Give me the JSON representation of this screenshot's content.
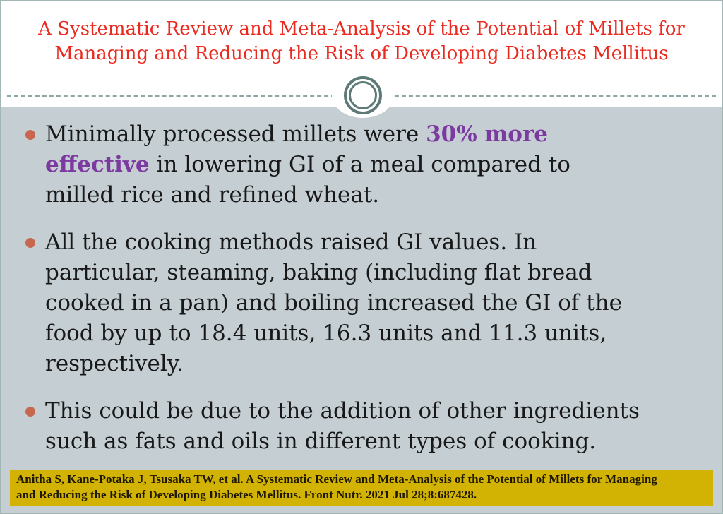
{
  "slide": {
    "title": "A Systematic Review and Meta-Analysis of the Potential of Millets for\nManaging and Reducing the Risk of Developing Diabetes Mellitus",
    "bullets": [
      {
        "pre": "Minimally processed millets were ",
        "highlight": "30% more\neffective",
        "post": " in lowering GI of a meal compared to\nmilled rice and refined wheat."
      },
      {
        "text": "All the cooking methods raised GI values. In\nparticular, steaming, baking (including flat bread\ncooked in a pan) and boiling increased the GI of the\nfood by up to 18.4 units, 16.3 units and 11.3 units,\nrespectively."
      },
      {
        "text": "This could be due to the addition of other ingredients\nsuch as fats and oils in different types of cooking."
      }
    ],
    "citation": "Anitha S, Kane-Potaka J, Tsusaka TW, et al. A Systematic Review and Meta-Analysis of the Potential of Millets for Managing\nand Reducing the Risk of Developing Diabetes Mellitus. Front Nutr. 2021 Jul 28;8:687428.",
    "colors": {
      "title_red": "#ea2a1f",
      "header_bg": "#ffffff",
      "body_bg": "#c4ced3",
      "body_text": "#181818",
      "highlight_purple": "#7c3aa0",
      "bullet_dot": "#c8674f",
      "citation_bg": "#d2b303",
      "citation_text": "#1f1800",
      "border": "#a2b6b5",
      "ornament_ring": "#5d7a78",
      "dash_line": "#8fa6a6"
    }
  }
}
